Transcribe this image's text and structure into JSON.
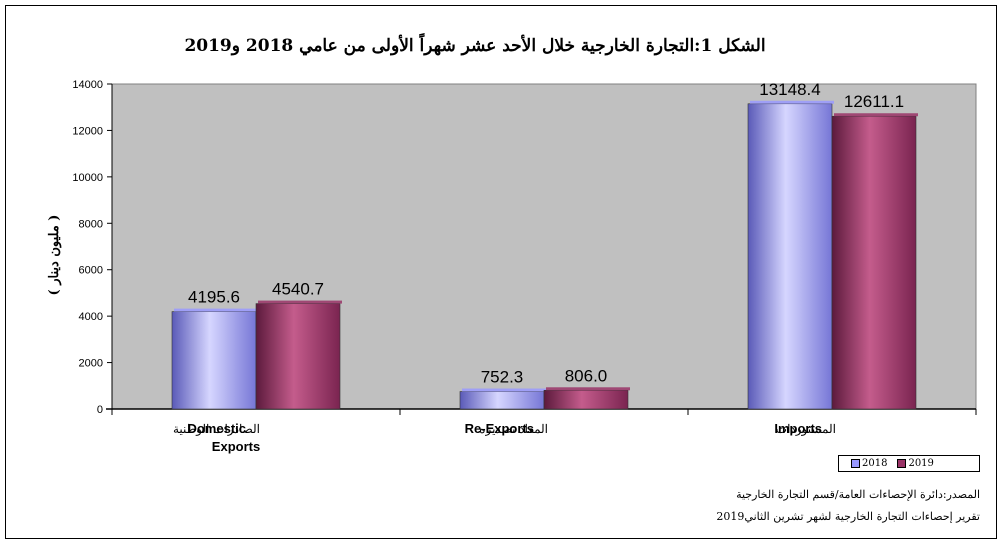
{
  "chart_data": {
    "type": "bar",
    "title": "الشكل 1:التجارة الخارجية خلال الأحد عشر شهراً الأولى من عامي 2018 و2019",
    "ylabel": "( مليون دينار )",
    "ylim": [
      0,
      14000
    ],
    "yticks": [
      "0",
      "2000",
      "4000",
      "6000",
      "8000",
      "10000",
      "12000",
      "14000"
    ],
    "categories": [
      {
        "en": "Domestic Exports",
        "ar": "الصادرات الوطنية"
      },
      {
        "en": "Re-Exports",
        "ar": "المعاد تصديره"
      },
      {
        "en": "Imports",
        "ar": "المستوردات"
      }
    ],
    "series": [
      {
        "name": "2018",
        "values": [
          4195.6,
          752.3,
          13148.4
        ],
        "labels": [
          "4195.6",
          "752.3",
          "13148.4"
        ],
        "color": "#9999ff"
      },
      {
        "name": "2019",
        "values": [
          4540.7,
          806.0,
          12611.1
        ],
        "labels": [
          "4540.7",
          "806.0",
          "12611.1"
        ],
        "color": "#993366"
      }
    ],
    "grid": false,
    "legend": "bottom-right"
  },
  "notes": {
    "source": "المصدر:دائرة الإحصاءات العامة/قسم التجارة الخارجية",
    "report": "تقرير إحصاءات التجارة الخارجية لشهر تشرين الثاني2019"
  }
}
